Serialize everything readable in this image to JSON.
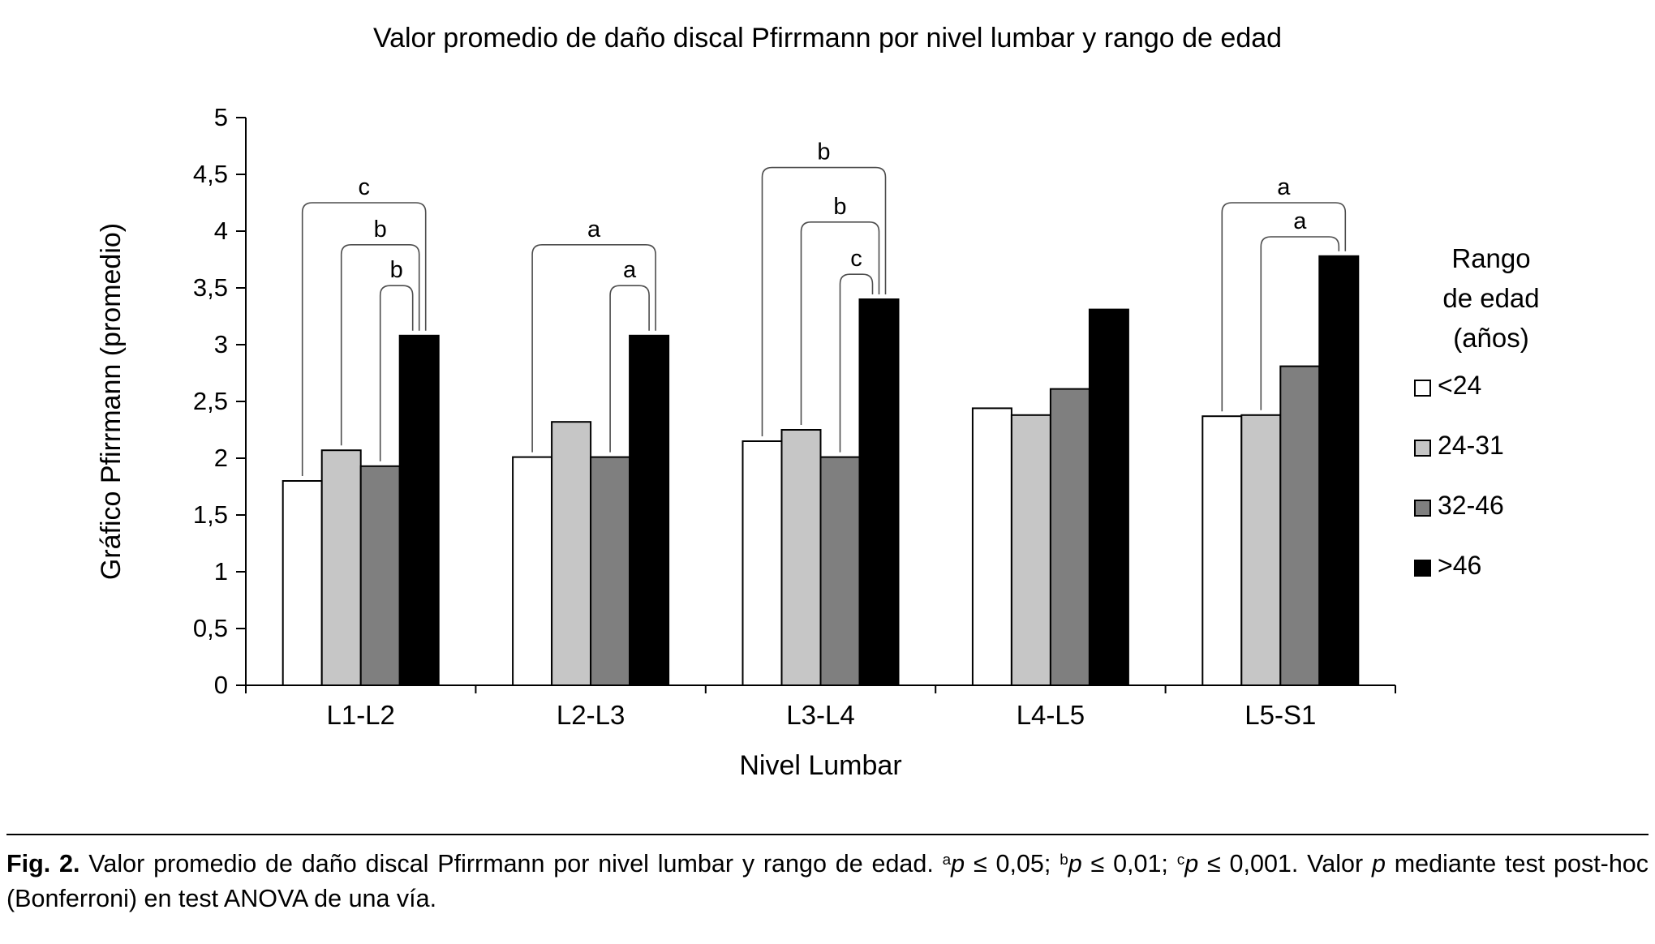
{
  "chart_data": {
    "type": "bar",
    "title": "Valor promedio de daño discal Pfirrmann por nivel lumbar y rango de edad",
    "xlabel": "Nivel Lumbar",
    "ylabel": "Gráfico Pfirrmann (promedio)",
    "ylim": [
      0,
      5
    ],
    "yticks": [
      0,
      0.5,
      1,
      1.5,
      2,
      2.5,
      3,
      3.5,
      4,
      4.5,
      5
    ],
    "ytick_labels": [
      "0",
      "0,5",
      "1",
      "1,5",
      "2",
      "2,5",
      "3",
      "3,5",
      "4",
      "4,5",
      "5"
    ],
    "categories": [
      "L1-L2",
      "L2-L3",
      "L3-L4",
      "L4-L5",
      "L5-S1"
    ],
    "series": [
      {
        "name": "<24",
        "color": "#ffffff",
        "values": [
          1.8,
          2.01,
          2.15,
          2.44,
          2.37
        ]
      },
      {
        "name": "24-31",
        "color": "#c6c6c6",
        "values": [
          2.07,
          2.32,
          2.25,
          2.38,
          2.38
        ]
      },
      {
        "name": "32-46",
        "color": "#7f7f7f",
        "values": [
          1.93,
          2.01,
          2.01,
          2.61,
          2.81
        ]
      },
      {
        "name": ">46",
        "color": "#000000",
        "values": [
          3.08,
          3.08,
          3.4,
          3.31,
          3.78
        ]
      }
    ],
    "legend_title_lines": [
      "Rango",
      "de edad",
      "(años)"
    ],
    "legend_position": "right",
    "grid": false,
    "significance_brackets": [
      {
        "category": 0,
        "from": 0,
        "to": 3,
        "label": "c",
        "y": 4.25
      },
      {
        "category": 0,
        "from": 1,
        "to": 3,
        "label": "b",
        "y": 3.88
      },
      {
        "category": 0,
        "from": 2,
        "to": 3,
        "label": "b",
        "y": 3.52
      },
      {
        "category": 1,
        "from": 0,
        "to": 3,
        "label": "a",
        "y": 3.88
      },
      {
        "category": 1,
        "from": 2,
        "to": 3,
        "label": "a",
        "y": 3.52
      },
      {
        "category": 2,
        "from": 0,
        "to": 3,
        "label": "b",
        "y": 4.56
      },
      {
        "category": 2,
        "from": 1,
        "to": 3,
        "label": "b",
        "y": 4.08
      },
      {
        "category": 2,
        "from": 2,
        "to": 3,
        "label": "c",
        "y": 3.62
      },
      {
        "category": 4,
        "from": 0,
        "to": 3,
        "label": "a",
        "y": 4.25
      },
      {
        "category": 4,
        "from": 1,
        "to": 3,
        "label": "a",
        "y": 3.95
      }
    ]
  },
  "figure": {
    "caption_segments": [
      {
        "text": "Fig. 2.",
        "style": "bold"
      },
      {
        "text": " Valor promedio de daño discal Pfirrmann por nivel lumbar y rango de edad. ",
        "style": "normal"
      },
      {
        "text": "a",
        "style": "sup"
      },
      {
        "text": "p",
        "style": "italic"
      },
      {
        "text": " ≤ 0,05; ",
        "style": "normal"
      },
      {
        "text": "b",
        "style": "sup"
      },
      {
        "text": "p",
        "style": "italic"
      },
      {
        "text": " ≤ 0,01; ",
        "style": "normal"
      },
      {
        "text": "c",
        "style": "sup"
      },
      {
        "text": "p",
        "style": "italic"
      },
      {
        "text": " ≤ 0,001. Valor ",
        "style": "normal"
      },
      {
        "text": "p",
        "style": "italic"
      },
      {
        "text": " mediante test post-hoc (Bonferroni) en test ANOVA de una vía.",
        "style": "normal"
      }
    ]
  }
}
